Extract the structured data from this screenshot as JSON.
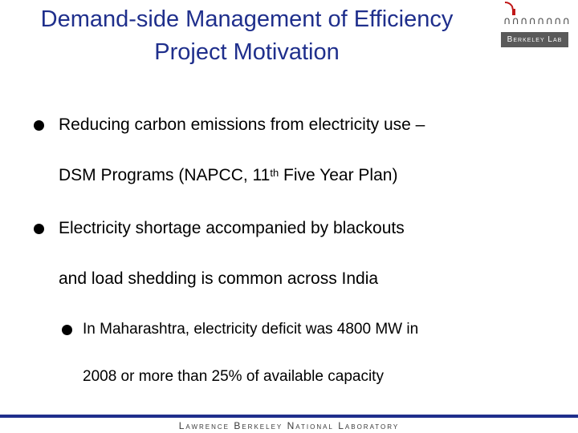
{
  "title": {
    "line1": "Demand-side Management of Efficiency",
    "line2": "Project Motivation"
  },
  "logo": {
    "label": "Berkeley Lab",
    "arcs": "∩∩∩∩∩∩∩∩",
    "icon": "campanile-icon"
  },
  "bullets": [
    {
      "text": "Reducing carbon emissions from electricity use –"
    },
    {
      "pre": "DSM Programs (NAPCC, 11",
      "sup": "th",
      "post": " Five Year Plan)"
    },
    {
      "text": "Electricity shortage accompanied by blackouts"
    },
    {
      "text": "and load shedding is common across India"
    },
    {
      "text": "In Maharashtra, electricity deficit was 4800 MW in"
    },
    {
      "text": "2008 or more than 25% of available capacity"
    }
  ],
  "footer": {
    "text": "Lawrence Berkeley National Laboratory",
    "accent": "#1f2f8c"
  }
}
